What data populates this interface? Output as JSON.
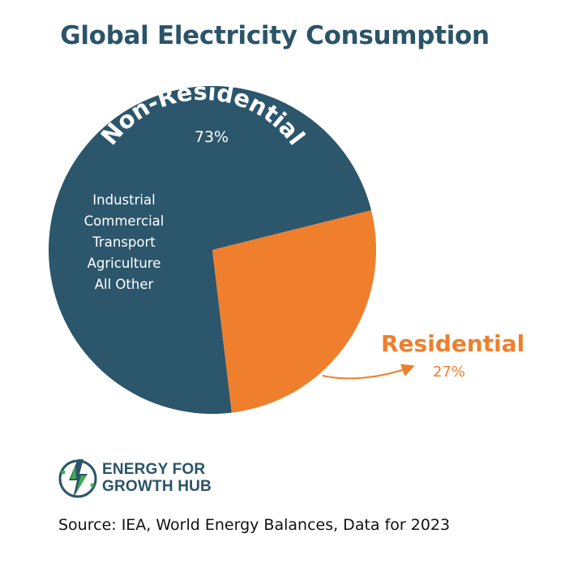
{
  "title": "Global Electricity Consumption",
  "chart_data": {
    "type": "pie",
    "title": "Global Electricity Consumption",
    "slices": [
      {
        "label": "Non-Residential",
        "value": 73,
        "value_label": "73%",
        "color": "#2b566c",
        "label_color": "#ffffff",
        "sub_items": [
          "Industrial",
          "Commercial",
          "Transport",
          "Agriculture",
          "All Other"
        ]
      },
      {
        "label": "Residential",
        "value": 27,
        "value_label": "27%",
        "color": "#ef7f2d",
        "label_color": "#ef7f2d"
      }
    ]
  },
  "logo": {
    "line1": "ENERGY FOR",
    "line2": "GROWTH HUB",
    "colors": [
      "#2b5468",
      "#3fae49",
      "#1f3c4e"
    ]
  },
  "source": "Source: IEA, World Energy Balances, Data for 2023"
}
